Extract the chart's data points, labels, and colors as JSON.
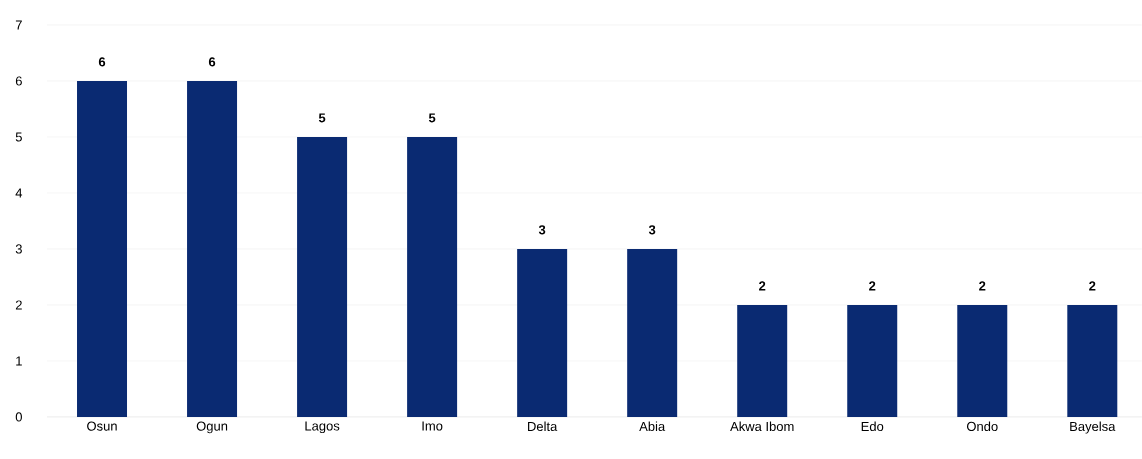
{
  "chart_data": {
    "type": "bar",
    "categories": [
      "Osun",
      "Ogun",
      "Lagos",
      "Imo",
      "Delta",
      "Abia",
      "Akwa Ibom",
      "Edo",
      "Ondo",
      "Bayelsa"
    ],
    "values": [
      6,
      6,
      5,
      5,
      3,
      3,
      2,
      2,
      2,
      2
    ],
    "color": "#0a2a72",
    "ylim": [
      0,
      7
    ],
    "yticks": [
      0,
      1,
      2,
      3,
      4,
      5,
      6,
      7
    ],
    "grid": "y",
    "data_labels": true
  }
}
